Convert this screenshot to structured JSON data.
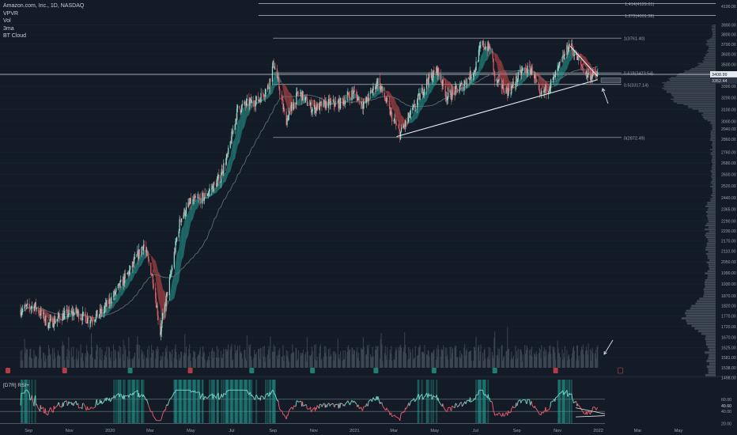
{
  "header": {
    "symbol_title": "Amazon.com, Inc., 1D, NASDAQ",
    "indicators": [
      "VPVR",
      "Vol",
      "3ma",
      "BT Cloud"
    ]
  },
  "rsi_panel": {
    "label": "[D7R] RSI+",
    "right_value": "49.60",
    "levels": [
      "60.00",
      "40.00",
      "20.00"
    ]
  },
  "colors": {
    "background": "#131b26",
    "bull": "#26a69a",
    "bear": "#ef5350",
    "price_line": "#ffffff"
  },
  "chart_data": {
    "type": "candlestick",
    "title": "Amazon.com, Inc., 1D, NASDAQ",
    "ylim": [
      1490,
      4160
    ],
    "xlim": [
      "2019-08",
      "2022-05"
    ],
    "x_ticks": [
      "Sep",
      "Nov",
      "2020",
      "Mar",
      "May",
      "Jul",
      "Sep",
      "Nov",
      "2021",
      "Mar",
      "May",
      "Jul",
      "Sep",
      "Nov",
      "2022",
      "Mar",
      "May"
    ],
    "y_ticks": [
      "4100.00",
      "3900.00",
      "3800.00",
      "3700.00",
      "3600.00",
      "3500.00",
      "3400.00",
      "3300.00",
      "3200.00",
      "3100.00",
      "3000.00",
      "2940.00",
      "2860.00",
      "2760.00",
      "2680.00",
      "2600.00",
      "2520.00",
      "2440.00",
      "2365.00",
      "2290.00",
      "2230.00",
      "2170.00",
      "2110.00",
      "2050.00",
      "1990.00",
      "1930.00",
      "1870.00",
      "1820.00",
      "1770.00",
      "1720.00",
      "1670.00",
      "1625.00",
      "1581.00",
      "1538.00",
      "1498.00"
    ],
    "price_path": [
      [
        "2019-08-20",
        1800
      ],
      [
        "2019-09-10",
        1820
      ],
      [
        "2019-10-01",
        1730
      ],
      [
        "2019-10-20",
        1770
      ],
      [
        "2019-11-10",
        1790
      ],
      [
        "2019-12-01",
        1750
      ],
      [
        "2019-12-20",
        1790
      ],
      [
        "2020-01-10",
        1890
      ],
      [
        "2020-02-01",
        2010
      ],
      [
        "2020-02-20",
        2150
      ],
      [
        "2020-03-05",
        1960
      ],
      [
        "2020-03-16",
        1690
      ],
      [
        "2020-04-01",
        1980
      ],
      [
        "2020-04-15",
        2300
      ],
      [
        "2020-05-01",
        2410
      ],
      [
        "2020-05-20",
        2440
      ],
      [
        "2020-06-10",
        2550
      ],
      [
        "2020-06-25",
        2730
      ],
      [
        "2020-07-10",
        3100
      ],
      [
        "2020-07-25",
        3150
      ],
      [
        "2020-08-10",
        3180
      ],
      [
        "2020-08-25",
        3300
      ],
      [
        "2020-09-02",
        3520
      ],
      [
        "2020-09-20",
        3000
      ],
      [
        "2020-10-10",
        3250
      ],
      [
        "2020-10-30",
        3100
      ],
      [
        "2020-11-20",
        3150
      ],
      [
        "2020-12-10",
        3150
      ],
      [
        "2020-12-30",
        3250
      ],
      [
        "2021-01-15",
        3130
      ],
      [
        "2021-02-05",
        3350
      ],
      [
        "2021-02-25",
        3050
      ],
      [
        "2021-03-10",
        2900
      ],
      [
        "2021-03-30",
        3100
      ],
      [
        "2021-04-20",
        3350
      ],
      [
        "2021-05-05",
        3450
      ],
      [
        "2021-05-20",
        3200
      ],
      [
        "2021-06-10",
        3300
      ],
      [
        "2021-06-30",
        3450
      ],
      [
        "2021-07-10",
        3700
      ],
      [
        "2021-07-25",
        3650
      ],
      [
        "2021-07-30",
        3350
      ],
      [
        "2021-08-20",
        3250
      ],
      [
        "2021-09-10",
        3450
      ],
      [
        "2021-09-25",
        3450
      ],
      [
        "2021-10-05",
        3200
      ],
      [
        "2021-10-25",
        3350
      ],
      [
        "2021-11-05",
        3500
      ],
      [
        "2021-11-19",
        3700
      ],
      [
        "2021-12-01",
        3550
      ],
      [
        "2021-12-15",
        3400
      ],
      [
        "2021-12-31",
        3400
      ]
    ],
    "fib_levels": [
      {
        "label": "1.414(4129.61)",
        "value": 4129.61
      },
      {
        "label": "1.272(4001.38)",
        "value": 4001.38
      },
      {
        "label": "1(3761.40)",
        "value": 3761.4
      },
      {
        "label": "0.618(3423.54)",
        "value": 3423.54
      },
      {
        "label": "0.5(3317.14)",
        "value": 3317.14
      },
      {
        "label": "0(2872.49)",
        "value": 2872.49
      }
    ],
    "last_price_label": "3408.99",
    "current_price_label": "3352.44",
    "ascending_trendline": [
      [
        "2021-03-05",
        2880
      ],
      [
        "2021-12-31",
        3360
      ]
    ],
    "descending_trendline": [
      [
        "2021-11-20",
        3680
      ],
      [
        "2021-12-31",
        3390
      ]
    ],
    "rsi_levels": [
      60,
      40,
      20
    ]
  }
}
